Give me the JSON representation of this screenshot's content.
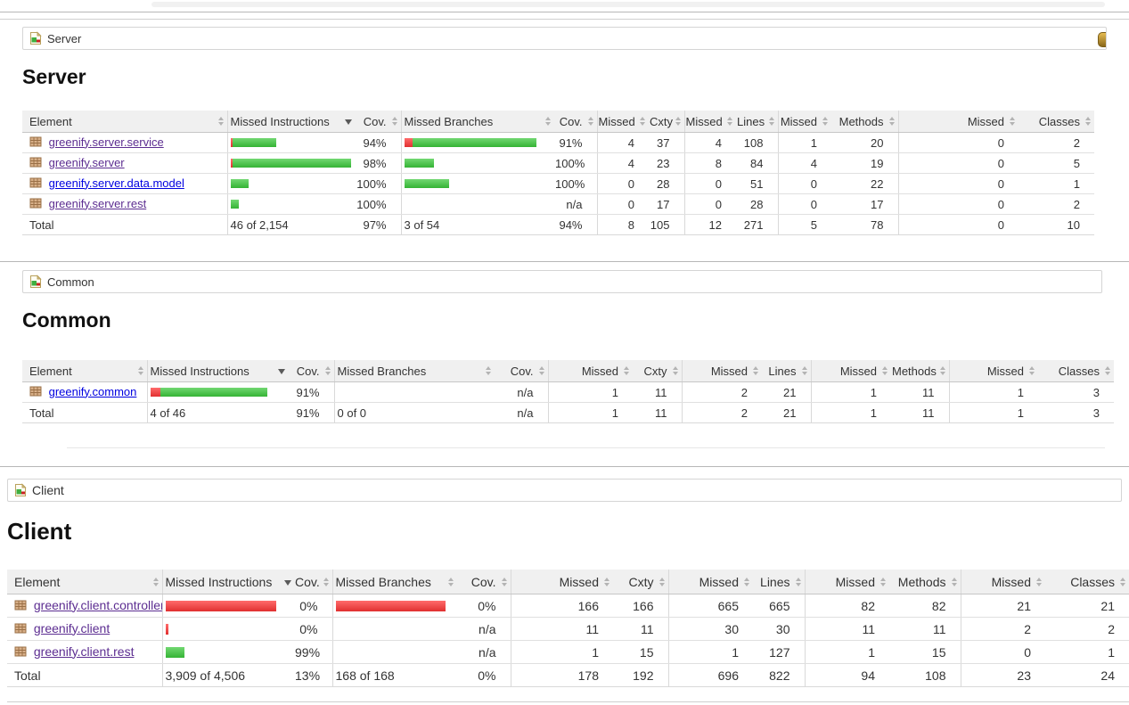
{
  "colors": {
    "link": "#0000e0",
    "link_visited": "#5c2d91",
    "bar_green_hi": "#72d872",
    "bar_green_lo": "#35b335",
    "bar_red_hi": "#ff6b6b",
    "bar_red_lo": "#e03030",
    "header_bg": "#f0f0f0",
    "sessions_icon_gold": "#c89a3c"
  },
  "sections": [
    {
      "breadcrumb": "Server",
      "title": "Server",
      "has_sessions_icon": true,
      "columns": [
        "Element",
        "Missed Instructions",
        "Cov.",
        "Missed Branches",
        "Cov.",
        "Missed",
        "Cxty",
        "Missed",
        "Lines",
        "Missed",
        "Methods",
        "Missed",
        "Classes"
      ],
      "sorted_column": 1,
      "rows": [
        {
          "element": "greenify.server.service",
          "visited": true,
          "instr_bar": [
            2,
            49
          ],
          "instr_cov": "94%",
          "branch_bar": [
            9,
            139
          ],
          "branch_cov": "91%",
          "counters": [
            "4",
            "37",
            "4",
            "108",
            "1",
            "20",
            "0",
            "2"
          ]
        },
        {
          "element": "greenify.server",
          "visited": true,
          "instr_bar": [
            2,
            133
          ],
          "instr_cov": "98%",
          "branch_bar": [
            0,
            33
          ],
          "branch_cov": "100%",
          "counters": [
            "4",
            "23",
            "8",
            "84",
            "4",
            "19",
            "0",
            "5"
          ]
        },
        {
          "element": "greenify.server.data.model",
          "visited": false,
          "instr_bar": [
            0,
            20
          ],
          "instr_cov": "100%",
          "branch_bar": [
            0,
            50
          ],
          "branch_cov": "100%",
          "counters": [
            "0",
            "28",
            "0",
            "51",
            "0",
            "22",
            "0",
            "1"
          ]
        },
        {
          "element": "greenify.server.rest",
          "visited": true,
          "instr_bar": [
            0,
            9
          ],
          "instr_cov": "100%",
          "branch_bar": [
            0,
            0
          ],
          "branch_cov": "n/a",
          "counters": [
            "0",
            "17",
            "0",
            "28",
            "0",
            "17",
            "0",
            "2"
          ]
        }
      ],
      "total": {
        "label": "Total",
        "instr": "46 of 2,154",
        "instr_cov": "97%",
        "branch": "3 of 54",
        "branch_cov": "94%",
        "counters": [
          "8",
          "105",
          "12",
          "271",
          "5",
          "78",
          "0",
          "10"
        ]
      }
    },
    {
      "breadcrumb": "Common",
      "title": "Common",
      "has_sessions_icon": false,
      "columns": [
        "Element",
        "Missed Instructions",
        "Cov.",
        "Missed Branches",
        "Cov.",
        "Missed",
        "Cxty",
        "Missed",
        "Lines",
        "Missed",
        "Methods",
        "Missed",
        "Classes"
      ],
      "sorted_column": 1,
      "rows": [
        {
          "element": "greenify.common",
          "visited": false,
          "instr_bar": [
            11,
            120
          ],
          "instr_cov": "91%",
          "branch_bar": [
            0,
            0
          ],
          "branch_cov": "n/a",
          "counters": [
            "1",
            "11",
            "2",
            "21",
            "1",
            "11",
            "1",
            "3"
          ]
        }
      ],
      "total": {
        "label": "Total",
        "instr": "4 of 46",
        "instr_cov": "91%",
        "branch": "0 of 0",
        "branch_cov": "n/a",
        "counters": [
          "1",
          "11",
          "2",
          "21",
          "1",
          "11",
          "1",
          "3"
        ]
      }
    },
    {
      "breadcrumb": "Client",
      "title": "Client",
      "has_sessions_icon": false,
      "columns": [
        "Element",
        "Missed Instructions",
        "Cov.",
        "Missed Branches",
        "Cov.",
        "Missed",
        "Cxty",
        "Missed",
        "Lines",
        "Missed",
        "Methods",
        "Missed",
        "Classes"
      ],
      "sorted_column": 1,
      "rows": [
        {
          "element": "greenify.client.controller",
          "visited": true,
          "instr_bar": [
            124,
            0
          ],
          "instr_cov": "0%",
          "branch_bar": [
            123,
            0
          ],
          "branch_cov": "0%",
          "counters": [
            "166",
            "166",
            "665",
            "665",
            "82",
            "82",
            "21",
            "21"
          ]
        },
        {
          "element": "greenify.client",
          "visited": true,
          "instr_bar": [
            3,
            0
          ],
          "instr_cov": "0%",
          "branch_bar": [
            0,
            0
          ],
          "branch_cov": "n/a",
          "counters": [
            "11",
            "11",
            "30",
            "30",
            "11",
            "11",
            "2",
            "2"
          ]
        },
        {
          "element": "greenify.client.rest",
          "visited": true,
          "instr_bar": [
            0,
            21
          ],
          "instr_cov": "99%",
          "branch_bar": [
            0,
            0
          ],
          "branch_cov": "n/a",
          "counters": [
            "1",
            "15",
            "1",
            "127",
            "1",
            "15",
            "0",
            "1"
          ]
        }
      ],
      "total": {
        "label": "Total",
        "instr": "3,909 of 4,506",
        "instr_cov": "13%",
        "branch": "168 of 168",
        "branch_cov": "0%",
        "counters": [
          "178",
          "192",
          "696",
          "822",
          "94",
          "108",
          "23",
          "24"
        ]
      }
    }
  ]
}
